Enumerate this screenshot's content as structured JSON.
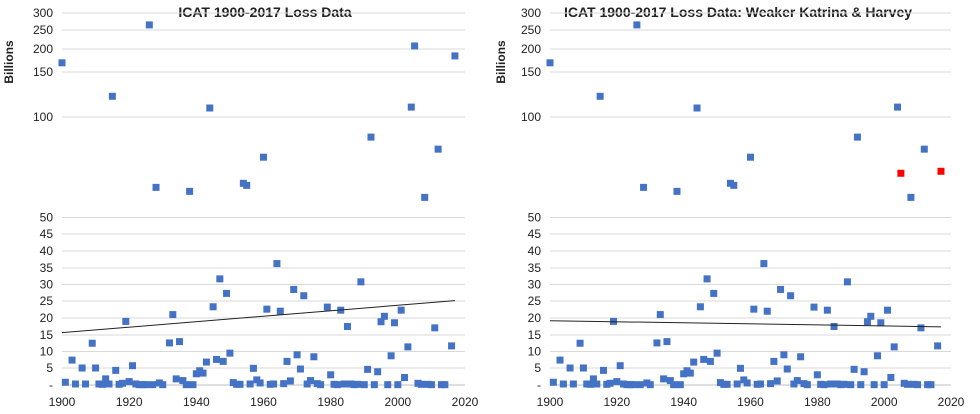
{
  "colors": {
    "marker": "#4472c4",
    "highlight": "#ff0000",
    "trend": "#222222",
    "grid": "#d9d9d9"
  },
  "chart_data": [
    {
      "type": "scatter",
      "title": "ICAT 1900-2017 Loss Data",
      "xlabel": "",
      "ylabel": "Billions",
      "xlim": [
        1900,
        2020
      ],
      "x_ticks": [
        "1900",
        "1920",
        "1940",
        "1960",
        "1980",
        "2000",
        "2020"
      ],
      "y_ticks": [
        "-",
        "5",
        "10",
        "15",
        "20",
        "25",
        "30",
        "35",
        "40",
        "45",
        "50",
        "100",
        "150",
        "200",
        "250",
        "300"
      ],
      "y_tick_values": [
        0,
        5,
        10,
        15,
        20,
        25,
        30,
        35,
        40,
        45,
        50,
        100,
        150,
        200,
        250,
        300
      ],
      "grid": true,
      "legend": "none",
      "trendline": {
        "x": [
          1900,
          2017
        ],
        "y": [
          15.7,
          25.1
        ]
      },
      "points": [
        [
          1900,
          170
        ],
        [
          1901,
          0.8
        ],
        [
          1903,
          7.4
        ],
        [
          1904,
          0.3
        ],
        [
          1906,
          5
        ],
        [
          1907,
          0.3
        ],
        [
          1909,
          12.5
        ],
        [
          1910,
          5
        ],
        [
          1911,
          0.3
        ],
        [
          1912,
          0.2
        ],
        [
          1913,
          1.8
        ],
        [
          1914,
          0.3
        ],
        [
          1915,
          123
        ],
        [
          1916,
          4.3
        ],
        [
          1917,
          0.2
        ],
        [
          1918,
          0.5
        ],
        [
          1919,
          19
        ],
        [
          1920,
          1
        ],
        [
          1921,
          5.7
        ],
        [
          1922,
          0.3
        ],
        [
          1923,
          0.1
        ],
        [
          1924,
          0.1
        ],
        [
          1925,
          0.1
        ],
        [
          1926,
          265
        ],
        [
          1927,
          0.1
        ],
        [
          1928,
          65
        ],
        [
          1929,
          0.6
        ],
        [
          1930,
          0.1
        ],
        [
          1932,
          12.6
        ],
        [
          1933,
          21
        ],
        [
          1934,
          1.8
        ],
        [
          1935,
          13
        ],
        [
          1936,
          1.3
        ],
        [
          1937,
          0.1
        ],
        [
          1938,
          63
        ],
        [
          1939,
          0.1
        ],
        [
          1940,
          3.3
        ],
        [
          1941,
          4.2
        ],
        [
          1942,
          3.5
        ],
        [
          1943,
          6.8
        ],
        [
          1944,
          110
        ],
        [
          1945,
          23.3
        ],
        [
          1946,
          7.6
        ],
        [
          1947,
          31.7
        ],
        [
          1948,
          7
        ],
        [
          1949,
          27.3
        ],
        [
          1950,
          9.5
        ],
        [
          1951,
          0.7
        ],
        [
          1952,
          0.2
        ],
        [
          1953,
          0.2
        ],
        [
          1954,
          67
        ],
        [
          1955,
          66
        ],
        [
          1956,
          0.3
        ],
        [
          1957,
          4.9
        ],
        [
          1958,
          1.5
        ],
        [
          1959,
          0.6
        ],
        [
          1960,
          80
        ],
        [
          1961,
          22.6
        ],
        [
          1962,
          0.2
        ],
        [
          1963,
          0.3
        ],
        [
          1964,
          36.3
        ],
        [
          1965,
          22
        ],
        [
          1966,
          0.4
        ],
        [
          1967,
          7
        ],
        [
          1968,
          1.2
        ],
        [
          1969,
          28.5
        ],
        [
          1970,
          9
        ],
        [
          1971,
          4.7
        ],
        [
          1972,
          26.6
        ],
        [
          1973,
          0.3
        ],
        [
          1974,
          1.3
        ],
        [
          1975,
          8.4
        ],
        [
          1976,
          0.4
        ],
        [
          1977,
          0.1
        ],
        [
          1979,
          23.2
        ],
        [
          1980,
          3
        ],
        [
          1981,
          0.2
        ],
        [
          1982,
          0.1
        ],
        [
          1983,
          22.3
        ],
        [
          1984,
          0.3
        ],
        [
          1985,
          17.5
        ],
        [
          1986,
          0.3
        ],
        [
          1987,
          0.1
        ],
        [
          1988,
          0.2
        ],
        [
          1989,
          30.8
        ],
        [
          1990,
          0.1
        ],
        [
          1991,
          4.6
        ],
        [
          1992,
          90
        ],
        [
          1993,
          0.1
        ],
        [
          1994,
          3.9
        ],
        [
          1995,
          18.9
        ],
        [
          1996,
          20.5
        ],
        [
          1997,
          0.1
        ],
        [
          1998,
          8.7
        ],
        [
          1999,
          18.6
        ],
        [
          2000,
          0.1
        ],
        [
          2001,
          22.3
        ],
        [
          2002,
          2.2
        ],
        [
          2003,
          11.4
        ],
        [
          2004,
          111
        ],
        [
          2005,
          208
        ],
        [
          2006,
          0.5
        ],
        [
          2007,
          0.2
        ],
        [
          2008,
          60
        ],
        [
          2009,
          0.2
        ],
        [
          2010,
          0.1
        ],
        [
          2011,
          17.1
        ],
        [
          2012,
          84
        ],
        [
          2013,
          0.1
        ],
        [
          2014,
          0.1
        ],
        [
          2016,
          11.7
        ],
        [
          2017,
          185
        ]
      ]
    },
    {
      "type": "scatter",
      "title": "ICAT 1900-2017 Loss Data: Weaker Katrina & Harvey",
      "xlabel": "",
      "ylabel": "Billions",
      "xlim": [
        1900,
        2020
      ],
      "x_ticks": [
        "1900",
        "1920",
        "1940",
        "1960",
        "1980",
        "2000",
        "2020"
      ],
      "y_ticks": [
        "-",
        "5",
        "10",
        "15",
        "20",
        "25",
        "30",
        "35",
        "40",
        "45",
        "50",
        "100",
        "150",
        "200",
        "250",
        "300"
      ],
      "y_tick_values": [
        0,
        5,
        10,
        15,
        20,
        25,
        30,
        35,
        40,
        45,
        50,
        100,
        150,
        200,
        250,
        300
      ],
      "grid": true,
      "legend": "none",
      "trendline": {
        "x": [
          1900,
          2017
        ],
        "y": [
          19.2,
          17.4
        ]
      },
      "highlighted": [
        [
          2005,
          72
        ],
        [
          2017,
          73
        ]
      ],
      "points": [
        [
          1900,
          170
        ],
        [
          1901,
          0.8
        ],
        [
          1903,
          7.4
        ],
        [
          1904,
          0.3
        ],
        [
          1906,
          5
        ],
        [
          1907,
          0.3
        ],
        [
          1909,
          12.5
        ],
        [
          1910,
          5
        ],
        [
          1911,
          0.3
        ],
        [
          1912,
          0.2
        ],
        [
          1913,
          1.8
        ],
        [
          1914,
          0.3
        ],
        [
          1915,
          123
        ],
        [
          1916,
          4.3
        ],
        [
          1917,
          0.2
        ],
        [
          1918,
          0.5
        ],
        [
          1919,
          19
        ],
        [
          1920,
          1
        ],
        [
          1921,
          5.7
        ],
        [
          1922,
          0.3
        ],
        [
          1923,
          0.1
        ],
        [
          1924,
          0.1
        ],
        [
          1925,
          0.1
        ],
        [
          1926,
          265
        ],
        [
          1927,
          0.1
        ],
        [
          1928,
          65
        ],
        [
          1929,
          0.6
        ],
        [
          1930,
          0.1
        ],
        [
          1932,
          12.6
        ],
        [
          1933,
          21
        ],
        [
          1934,
          1.8
        ],
        [
          1935,
          13
        ],
        [
          1936,
          1.3
        ],
        [
          1937,
          0.1
        ],
        [
          1938,
          63
        ],
        [
          1939,
          0.1
        ],
        [
          1940,
          3.3
        ],
        [
          1941,
          4.2
        ],
        [
          1942,
          3.5
        ],
        [
          1943,
          6.8
        ],
        [
          1944,
          110
        ],
        [
          1945,
          23.3
        ],
        [
          1946,
          7.6
        ],
        [
          1947,
          31.7
        ],
        [
          1948,
          7
        ],
        [
          1949,
          27.3
        ],
        [
          1950,
          9.5
        ],
        [
          1951,
          0.7
        ],
        [
          1952,
          0.2
        ],
        [
          1953,
          0.2
        ],
        [
          1954,
          67
        ],
        [
          1955,
          66
        ],
        [
          1956,
          0.3
        ],
        [
          1957,
          4.9
        ],
        [
          1958,
          1.5
        ],
        [
          1959,
          0.6
        ],
        [
          1960,
          80
        ],
        [
          1961,
          22.6
        ],
        [
          1962,
          0.2
        ],
        [
          1963,
          0.3
        ],
        [
          1964,
          36.3
        ],
        [
          1965,
          22
        ],
        [
          1966,
          0.4
        ],
        [
          1967,
          7
        ],
        [
          1968,
          1.2
        ],
        [
          1969,
          28.5
        ],
        [
          1970,
          9
        ],
        [
          1971,
          4.7
        ],
        [
          1972,
          26.6
        ],
        [
          1973,
          0.3
        ],
        [
          1974,
          1.3
        ],
        [
          1975,
          8.4
        ],
        [
          1976,
          0.4
        ],
        [
          1977,
          0.1
        ],
        [
          1979,
          23.2
        ],
        [
          1980,
          3
        ],
        [
          1981,
          0.2
        ],
        [
          1982,
          0.1
        ],
        [
          1983,
          22.3
        ],
        [
          1984,
          0.3
        ],
        [
          1985,
          17.5
        ],
        [
          1986,
          0.3
        ],
        [
          1987,
          0.1
        ],
        [
          1988,
          0.2
        ],
        [
          1989,
          30.8
        ],
        [
          1990,
          0.1
        ],
        [
          1991,
          4.6
        ],
        [
          1992,
          90
        ],
        [
          1993,
          0.1
        ],
        [
          1994,
          3.9
        ],
        [
          1995,
          18.9
        ],
        [
          1996,
          20.5
        ],
        [
          1997,
          0.1
        ],
        [
          1998,
          8.7
        ],
        [
          1999,
          18.6
        ],
        [
          2000,
          0.1
        ],
        [
          2001,
          22.3
        ],
        [
          2002,
          2.2
        ],
        [
          2003,
          11.4
        ],
        [
          2004,
          111
        ],
        [
          2006,
          0.5
        ],
        [
          2007,
          0.2
        ],
        [
          2008,
          60
        ],
        [
          2009,
          0.2
        ],
        [
          2010,
          0.1
        ],
        [
          2011,
          17.1
        ],
        [
          2012,
          84
        ],
        [
          2013,
          0.1
        ],
        [
          2014,
          0.1
        ],
        [
          2016,
          11.7
        ]
      ]
    }
  ]
}
